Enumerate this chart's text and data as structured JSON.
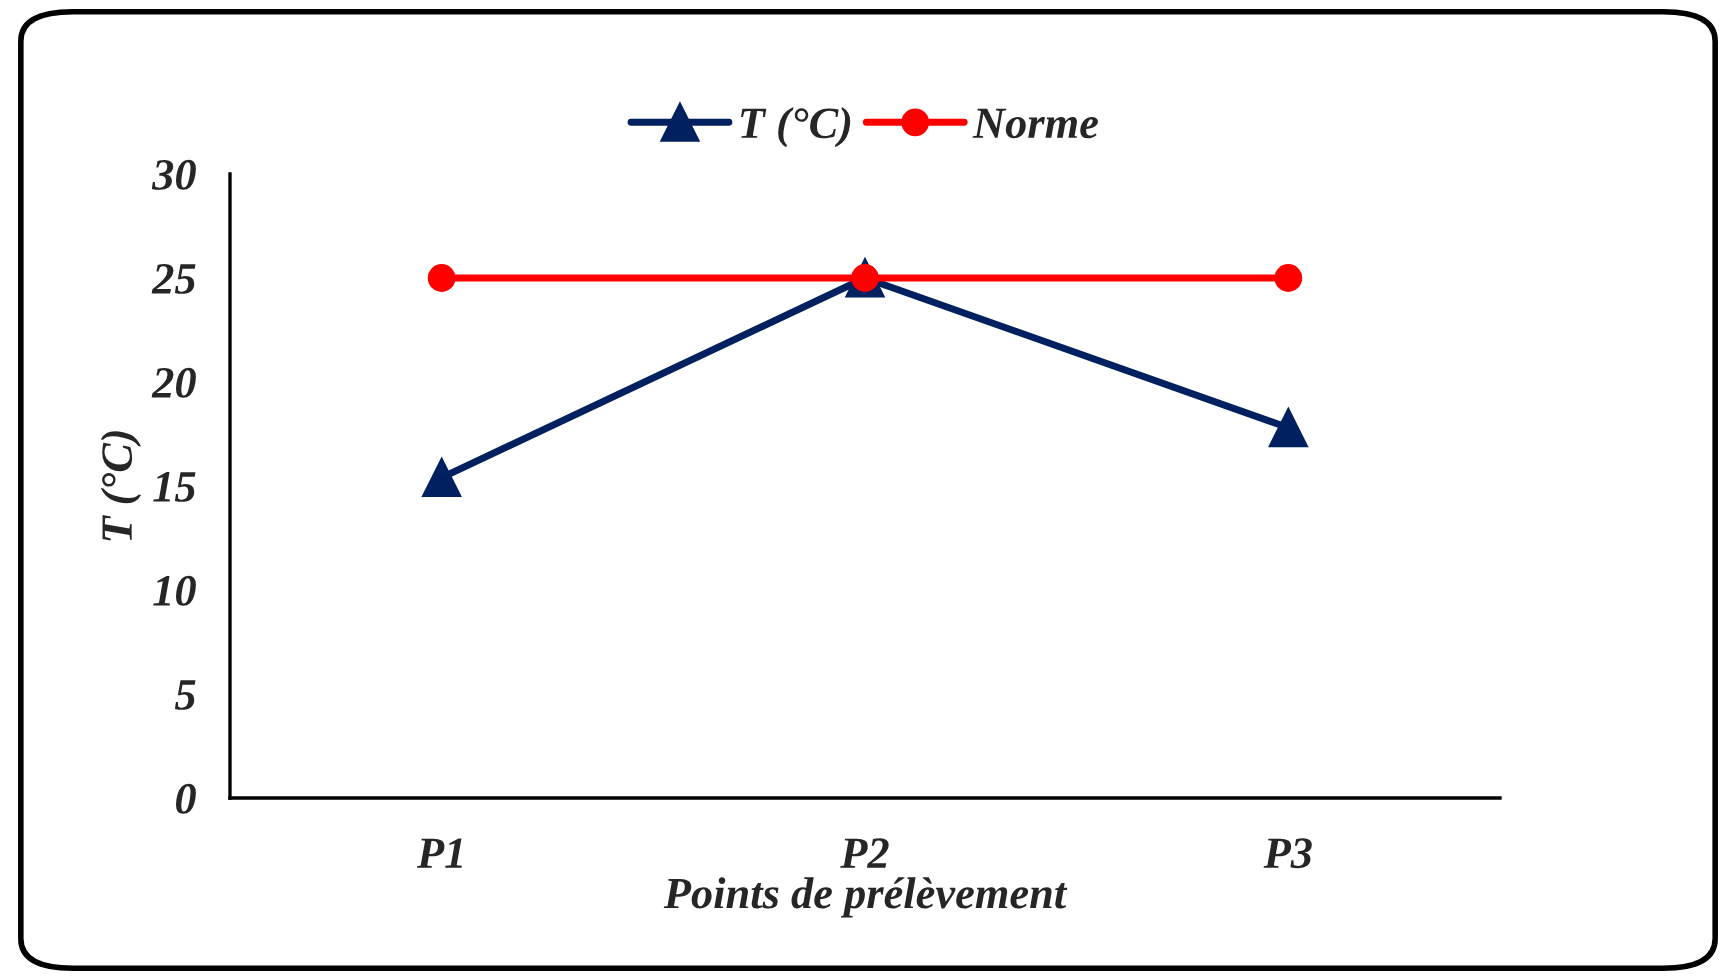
{
  "chart_data": {
    "type": "line",
    "xlabel": "Points de prélèvement",
    "ylabel": "T (°C)",
    "categories": [
      "P1",
      "P2",
      "P3"
    ],
    "series": [
      {
        "name": "T (°C)",
        "color": "#002060",
        "values": [
          15.4,
          25,
          17.8
        ],
        "marker": "triangle"
      },
      {
        "name": "Norme",
        "color": "#ff0000",
        "values": [
          25,
          25,
          25
        ],
        "marker": "circle"
      }
    ],
    "ylim": [
      0,
      30
    ],
    "yticks": [
      0,
      5,
      10,
      15,
      20,
      25,
      30
    ],
    "grid": false,
    "legend": "top",
    "line_style": "solid"
  }
}
